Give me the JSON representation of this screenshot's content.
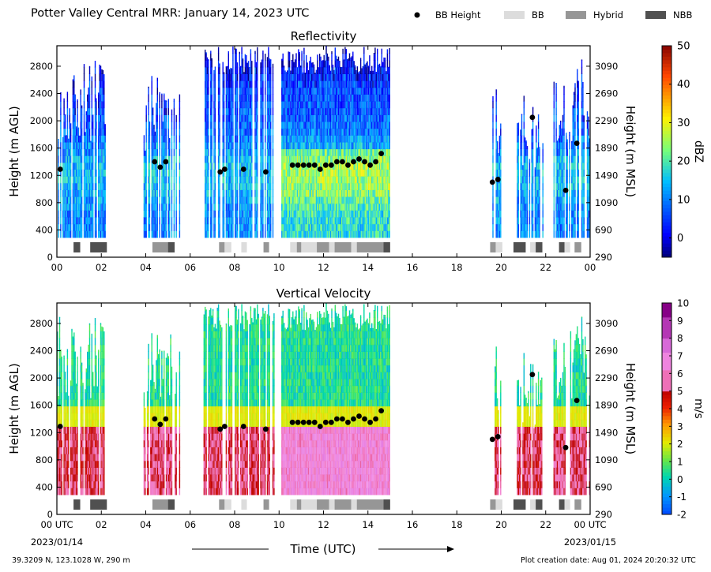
{
  "figure_title": "Potter Valley Central MRR:  January 14, 2023 UTC",
  "legend": [
    {
      "label": "BB Height",
      "marker": "dot",
      "color": "#000000"
    },
    {
      "label": "BB",
      "marker": "rect",
      "color": "#dcdcdc"
    },
    {
      "label": "Hybrid",
      "marker": "rect",
      "color": "#969696"
    },
    {
      "label": "NBB",
      "marker": "rect",
      "color": "#505050"
    }
  ],
  "footer": {
    "location": "39.3209 N, 123.1028 W, 290 m",
    "creation": "Plot creation date: Aug 01, 2024 20:20:32 UTC"
  },
  "x_axis": {
    "label": "Time (UTC)",
    "start_label": "2023/01/14",
    "end_label": "2023/01/15"
  },
  "chart_data": [
    {
      "type": "heatmap",
      "title": "Reflectivity",
      "xlabel": "",
      "ylabel": "Height (m AGL)",
      "y2label": "Height (m MSL)",
      "xlim": [
        0,
        24
      ],
      "ylim": [
        0,
        3100
      ],
      "x_ticks": [
        "00",
        "02",
        "04",
        "06",
        "08",
        "10",
        "12",
        "14",
        "16",
        "18",
        "20",
        "22",
        "00"
      ],
      "y_ticks": [
        0,
        400,
        800,
        1200,
        1600,
        2000,
        2400,
        2800
      ],
      "y2_ticks": [
        290,
        690,
        1090,
        1490,
        1890,
        2290,
        2690,
        3090
      ],
      "colorbar": {
        "label": "dBZ",
        "range": [
          -5,
          50
        ],
        "ticks": [
          0,
          10,
          20,
          30,
          40,
          50
        ],
        "colormap": "jet"
      },
      "grid": false
    },
    {
      "type": "heatmap",
      "title": "Vertical Velocity",
      "xlabel": "Time (UTC)",
      "ylabel": "Height (m AGL)",
      "y2label": "Height (m MSL)",
      "xlim": [
        0,
        24
      ],
      "ylim": [
        0,
        3100
      ],
      "x_ticks": [
        "00 UTC",
        "02",
        "04",
        "06",
        "08",
        "10",
        "12",
        "14",
        "16",
        "18",
        "20",
        "22",
        "00 UTC"
      ],
      "y_ticks": [
        0,
        400,
        800,
        1200,
        1600,
        2000,
        2400,
        2800
      ],
      "y2_ticks": [
        290,
        690,
        1090,
        1490,
        1890,
        2290,
        2690,
        3090
      ],
      "colorbar": {
        "label": "m/s",
        "range": [
          -2,
          10
        ],
        "ticks": [
          -2,
          -1,
          0,
          1,
          2,
          3,
          4,
          5,
          6,
          7,
          8,
          9,
          10
        ],
        "colormap": "rainbow-pink"
      },
      "grid": false
    }
  ],
  "bb_height": [
    [
      0.15,
      1290
    ],
    [
      4.4,
      1400
    ],
    [
      4.65,
      1320
    ],
    [
      4.9,
      1400
    ],
    [
      7.35,
      1250
    ],
    [
      7.55,
      1290
    ],
    [
      8.4,
      1290
    ],
    [
      9.4,
      1250
    ],
    [
      10.6,
      1350
    ],
    [
      10.85,
      1350
    ],
    [
      11.1,
      1350
    ],
    [
      11.35,
      1350
    ],
    [
      11.6,
      1350
    ],
    [
      11.85,
      1290
    ],
    [
      12.1,
      1350
    ],
    [
      12.35,
      1350
    ],
    [
      12.6,
      1400
    ],
    [
      12.85,
      1400
    ],
    [
      13.1,
      1350
    ],
    [
      13.35,
      1400
    ],
    [
      13.6,
      1440
    ],
    [
      13.85,
      1400
    ],
    [
      14.1,
      1350
    ],
    [
      14.35,
      1400
    ],
    [
      14.6,
      1520
    ],
    [
      19.6,
      1100
    ],
    [
      19.85,
      1140
    ],
    [
      21.4,
      2050
    ],
    [
      22.9,
      980
    ],
    [
      23.4,
      1670
    ]
  ],
  "bb_types": [
    {
      "start": 0.75,
      "end": 1.05,
      "type": "NBB"
    },
    {
      "start": 1.5,
      "end": 2.25,
      "type": "NBB"
    },
    {
      "start": 4.3,
      "end": 5.0,
      "type": "Hybrid"
    },
    {
      "start": 5.0,
      "end": 5.3,
      "type": "NBB"
    },
    {
      "start": 7.3,
      "end": 7.55,
      "type": "Hybrid"
    },
    {
      "start": 7.55,
      "end": 7.85,
      "type": "BB"
    },
    {
      "start": 8.3,
      "end": 8.55,
      "type": "BB"
    },
    {
      "start": 9.3,
      "end": 9.55,
      "type": "Hybrid"
    },
    {
      "start": 10.5,
      "end": 10.8,
      "type": "BB"
    },
    {
      "start": 10.8,
      "end": 11.0,
      "type": "Hybrid"
    },
    {
      "start": 11.0,
      "end": 11.7,
      "type": "BB"
    },
    {
      "start": 11.7,
      "end": 12.25,
      "type": "Hybrid"
    },
    {
      "start": 12.25,
      "end": 12.5,
      "type": "BB"
    },
    {
      "start": 12.5,
      "end": 13.25,
      "type": "Hybrid"
    },
    {
      "start": 13.25,
      "end": 13.5,
      "type": "BB"
    },
    {
      "start": 13.5,
      "end": 14.7,
      "type": "Hybrid"
    },
    {
      "start": 14.7,
      "end": 15.0,
      "type": "NBB"
    },
    {
      "start": 19.5,
      "end": 19.75,
      "type": "Hybrid"
    },
    {
      "start": 19.75,
      "end": 20.05,
      "type": "BB"
    },
    {
      "start": 20.55,
      "end": 21.1,
      "type": "NBB"
    },
    {
      "start": 21.3,
      "end": 21.55,
      "type": "BB"
    },
    {
      "start": 21.55,
      "end": 21.85,
      "type": "NBB"
    },
    {
      "start": 22.6,
      "end": 22.85,
      "type": "NBB"
    },
    {
      "start": 22.85,
      "end": 23.1,
      "type": "BB"
    },
    {
      "start": 23.3,
      "end": 23.6,
      "type": "Hybrid"
    }
  ],
  "echo_periods": [
    {
      "start": 0.0,
      "end": 2.2,
      "top": 2900,
      "strength": 0.45
    },
    {
      "start": 3.9,
      "end": 5.5,
      "top": 2700,
      "strength": 0.55
    },
    {
      "start": 6.6,
      "end": 9.8,
      "top": 3100,
      "strength": 0.5
    },
    {
      "start": 10.1,
      "end": 15.0,
      "top": 3100,
      "strength": 0.9
    },
    {
      "start": 19.6,
      "end": 20.0,
      "top": 2500,
      "strength": 0.55
    },
    {
      "start": 20.7,
      "end": 21.9,
      "top": 2400,
      "strength": 0.45
    },
    {
      "start": 22.3,
      "end": 24.0,
      "top": 2900,
      "strength": 0.55
    }
  ]
}
